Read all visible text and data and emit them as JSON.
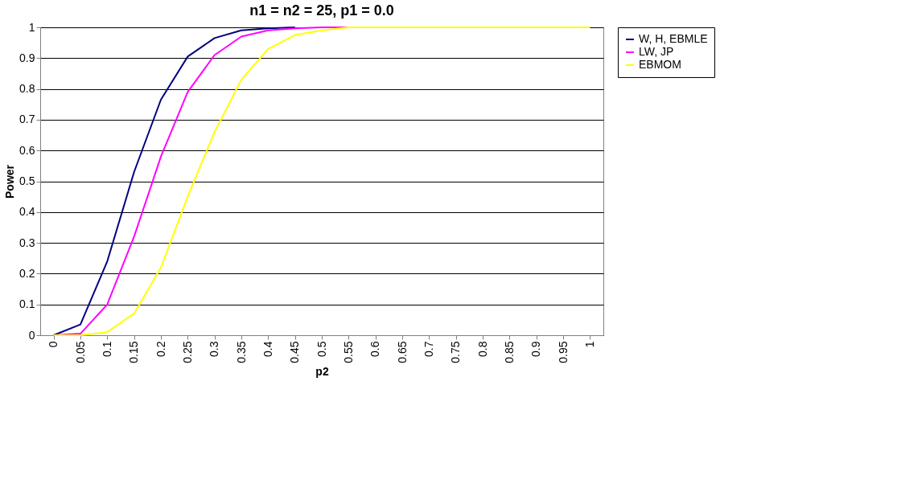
{
  "chart_data": {
    "type": "line",
    "title": "n1 = n2 = 25, p1 = 0.0",
    "xlabel": "p2",
    "ylabel": "Power",
    "categories": [
      "0",
      "0.05",
      "0.1",
      "0.15",
      "0.2",
      "0.25",
      "0.3",
      "0.35",
      "0.4",
      "0.45",
      "0.5",
      "0.55",
      "0.6",
      "0.65",
      "0.7",
      "0.75",
      "0.8",
      "0.85",
      "0.9",
      "0.95",
      "1"
    ],
    "series": [
      {
        "name": "W, H, EBMLE",
        "color": "#000080",
        "values": [
          0,
          0.035,
          0.24,
          0.53,
          0.765,
          0.905,
          0.965,
          0.99,
          0.997,
          1,
          null,
          null,
          null,
          null,
          null,
          null,
          null,
          null,
          null,
          null,
          null
        ]
      },
      {
        "name": "LW, JP",
        "color": "#ff00ff",
        "values": [
          0,
          0.005,
          0.1,
          0.32,
          0.58,
          0.79,
          0.91,
          0.97,
          0.99,
          0.997,
          1,
          1,
          1,
          null,
          null,
          null,
          null,
          null,
          null,
          null,
          null
        ]
      },
      {
        "name": "EBMOM",
        "color": "#ffff00",
        "values": [
          0,
          0,
          0.01,
          0.07,
          0.22,
          0.45,
          0.66,
          0.83,
          0.93,
          0.975,
          0.99,
          1,
          1,
          1,
          1,
          1,
          1,
          1,
          1,
          1,
          1
        ]
      }
    ],
    "ylim": [
      0,
      1
    ],
    "yticks": [
      0,
      0.1,
      0.2,
      0.3,
      0.4,
      0.5,
      0.6,
      0.7,
      0.8,
      0.9,
      1
    ],
    "grid": "y",
    "legend": "right",
    "marker": "none",
    "line_style": "solid"
  }
}
